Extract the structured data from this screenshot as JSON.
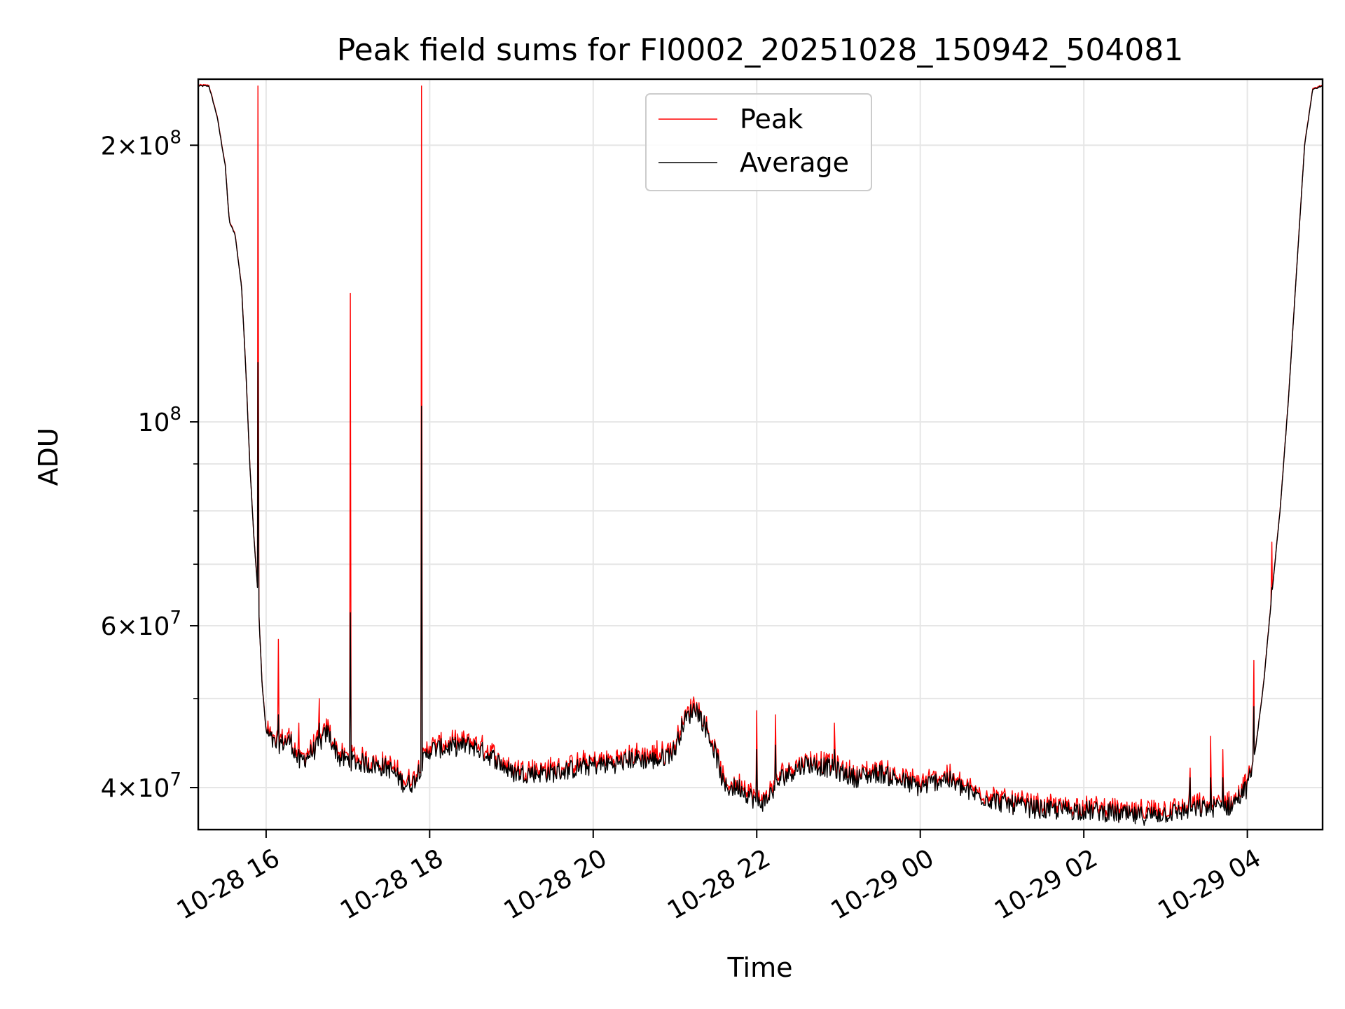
{
  "chart_data": {
    "type": "line",
    "title": "Peak field sums for FI0002_20251028_150942_504081",
    "xlabel": "Time",
    "ylabel": "ADU",
    "yscale": "log",
    "ylim": [
      36000000,
      236000000
    ],
    "xlim_hours": [
      -0.83,
      12.92
    ],
    "x_unit": "hours since 10-28 16:00",
    "grid": true,
    "legend_position": "top-center",
    "colors": {
      "peak": "#ff0000",
      "average": "#000000",
      "grid": "#e6e6e6"
    },
    "x_ticks": [
      {
        "hour": 0,
        "label": "10-28 16"
      },
      {
        "hour": 2,
        "label": "10-28 18"
      },
      {
        "hour": 4,
        "label": "10-28 20"
      },
      {
        "hour": 6,
        "label": "10-28 22"
      },
      {
        "hour": 8,
        "label": "10-29 00"
      },
      {
        "hour": 10,
        "label": "10-29 02"
      },
      {
        "hour": 12,
        "label": "10-29 04"
      }
    ],
    "y_ticks_major": [
      {
        "value": 40000000,
        "mantissa": "4",
        "exponent": "7"
      },
      {
        "value": 60000000,
        "mantissa": "6",
        "exponent": "7"
      },
      {
        "value": 100000000,
        "mantissa": "",
        "exponent": "8"
      },
      {
        "value": 200000000,
        "mantissa": "2",
        "exponent": "8"
      }
    ],
    "y_ticks_minor": [
      50000000,
      70000000,
      80000000,
      90000000,
      300000000
    ],
    "series": [
      {
        "name": "Peak",
        "color": "#ff0000"
      },
      {
        "name": "Average",
        "color": "#000000"
      }
    ],
    "baseline_points": [
      [
        -0.83,
        232000000
      ],
      [
        -0.7,
        232000000
      ],
      [
        -0.6,
        215000000
      ],
      [
        -0.5,
        190000000
      ],
      [
        -0.45,
        165000000
      ],
      [
        -0.38,
        160000000
      ],
      [
        -0.3,
        140000000
      ],
      [
        -0.25,
        115000000
      ],
      [
        -0.2,
        90000000
      ],
      [
        -0.15,
        75000000
      ],
      [
        -0.1,
        65000000
      ],
      [
        -0.05,
        52000000
      ],
      [
        0.0,
        46000000
      ],
      [
        0.1,
        44500000
      ],
      [
        0.3,
        45000000
      ],
      [
        0.4,
        42500000
      ],
      [
        0.6,
        44000000
      ],
      [
        0.75,
        46000000
      ],
      [
        0.9,
        43000000
      ],
      [
        1.2,
        42500000
      ],
      [
        1.5,
        42000000
      ],
      [
        1.7,
        40300000
      ],
      [
        1.8,
        40500000
      ],
      [
        1.85,
        41500000
      ],
      [
        2.0,
        44000000
      ],
      [
        2.5,
        44500000
      ],
      [
        2.8,
        43000000
      ],
      [
        3.0,
        41500000
      ],
      [
        3.5,
        41500000
      ],
      [
        4.0,
        42300000
      ],
      [
        4.3,
        42500000
      ],
      [
        4.5,
        43000000
      ],
      [
        4.8,
        42800000
      ],
      [
        5.0,
        44000000
      ],
      [
        5.1,
        47000000
      ],
      [
        5.25,
        49000000
      ],
      [
        5.4,
        46000000
      ],
      [
        5.5,
        43500000
      ],
      [
        5.6,
        40000000
      ],
      [
        5.8,
        40000000
      ],
      [
        6.0,
        38600000
      ],
      [
        6.1,
        38600000
      ],
      [
        6.3,
        41000000
      ],
      [
        6.6,
        42500000
      ],
      [
        6.9,
        42000000
      ],
      [
        7.2,
        41000000
      ],
      [
        7.5,
        41500000
      ],
      [
        8.0,
        40000000
      ],
      [
        8.3,
        41000000
      ],
      [
        8.6,
        39500000
      ],
      [
        9.0,
        38500000
      ],
      [
        9.5,
        37800000
      ],
      [
        10.0,
        37800000
      ],
      [
        10.3,
        37600000
      ],
      [
        10.6,
        37200000
      ],
      [
        11.0,
        37500000
      ],
      [
        11.5,
        38000000
      ],
      [
        11.8,
        38200000
      ],
      [
        12.0,
        40000000
      ],
      [
        12.1,
        44000000
      ],
      [
        12.2,
        52000000
      ],
      [
        12.3,
        65000000
      ],
      [
        12.4,
        80000000
      ],
      [
        12.5,
        105000000
      ],
      [
        12.6,
        145000000
      ],
      [
        12.7,
        200000000
      ],
      [
        12.8,
        230000000
      ],
      [
        12.92,
        232000000
      ]
    ],
    "peak_spikes": [
      {
        "hour": -0.1,
        "peak": 232000000,
        "average": 116000000
      },
      {
        "hour": 0.15,
        "peak": 58000000,
        "average": 48000000
      },
      {
        "hour": 0.4,
        "peak": 47000000,
        "average": 44000000
      },
      {
        "hour": 0.65,
        "peak": 50000000,
        "average": 47000000
      },
      {
        "hour": 1.03,
        "peak": 138000000,
        "average": 62000000
      },
      {
        "hour": 1.9,
        "peak": 232000000,
        "average": 104000000
      },
      {
        "hour": 4.78,
        "peak": 45000000,
        "average": 43000000
      },
      {
        "hour": 6.0,
        "peak": 48500000,
        "average": 44000000
      },
      {
        "hour": 6.23,
        "peak": 48000000,
        "average": 44500000
      },
      {
        "hour": 6.95,
        "peak": 47000000,
        "average": 44000000
      },
      {
        "hour": 11.3,
        "peak": 42000000,
        "average": 41000000
      },
      {
        "hour": 11.55,
        "peak": 45500000,
        "average": 41000000
      },
      {
        "hour": 11.7,
        "peak": 44000000,
        "average": 41000000
      },
      {
        "hour": 12.08,
        "peak": 55000000,
        "average": 49000000
      },
      {
        "hour": 12.3,
        "peak": 74000000,
        "average": 66000000
      }
    ]
  }
}
